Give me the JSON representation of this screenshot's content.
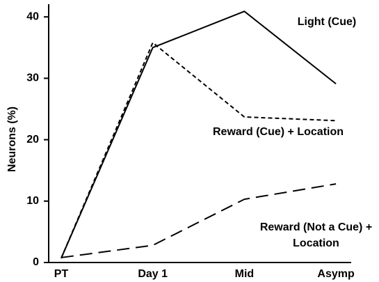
{
  "chart_data": {
    "type": "line",
    "ylabel": "Neurons (%)",
    "categories": [
      "PT",
      "Day 1",
      "Mid",
      "Asymp"
    ],
    "series": [
      {
        "name": "Light (Cue)",
        "color": "#000000",
        "dash": "none",
        "values": [
          0.7,
          35.0,
          40.9,
          29.1
        ]
      },
      {
        "name": "Reward (Cue) + Location",
        "color": "#000000",
        "dash": "6,4",
        "values": [
          0.7,
          35.8,
          23.7,
          23.1
        ]
      },
      {
        "name": "Reward (Not a Cue) + Location",
        "color": "#000000",
        "dash": "18,9",
        "values": [
          0.8,
          2.8,
          10.3,
          12.8
        ]
      }
    ],
    "ylim": [
      0,
      42
    ],
    "yticks": [
      0,
      10,
      20,
      30,
      40
    ],
    "grid": false
  }
}
